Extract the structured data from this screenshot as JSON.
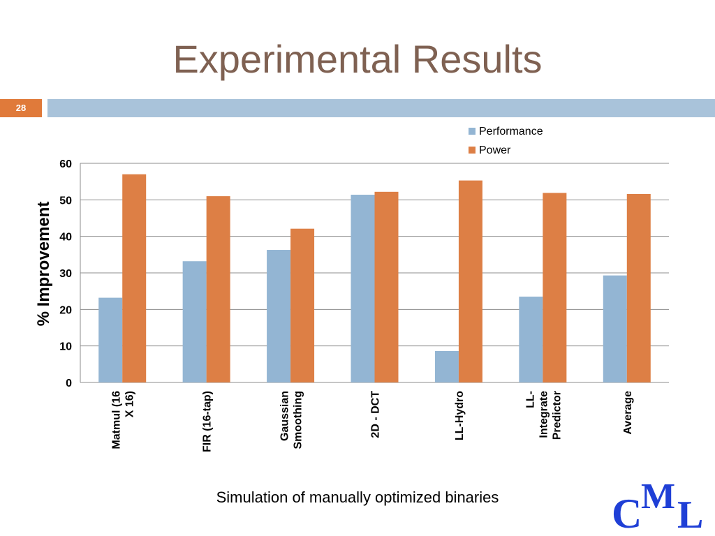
{
  "slide": {
    "title": "Experimental Results",
    "slide_number": "28",
    "caption": "Simulation of manually optimized binaries",
    "logo_text": "CML",
    "colors": {
      "title": "#7f6152",
      "accent_orange": "#e07a3a",
      "band_blue": "#a9c3da"
    }
  },
  "chart_data": {
    "type": "bar",
    "title": "",
    "xlabel": "",
    "ylabel": "% Improvement",
    "ylim": [
      0,
      60
    ],
    "yticks": [
      0,
      10,
      20,
      30,
      40,
      50,
      60
    ],
    "grid": true,
    "legend_position": "top-right",
    "categories": [
      [
        "Matmul (16",
        "X 16)"
      ],
      [
        "FIR (16-tap)"
      ],
      [
        "Gaussian",
        "Smoothing"
      ],
      [
        "2D - DCT"
      ],
      [
        "LL-Hydro"
      ],
      [
        "LL-",
        "Integrate",
        "Predictor"
      ],
      [
        "Average"
      ]
    ],
    "series": [
      {
        "name": "Performance",
        "color": "#93b5d3",
        "values": [
          23.2,
          33.2,
          36.3,
          51.4,
          8.6,
          23.5,
          29.3
        ]
      },
      {
        "name": "Power",
        "color": "#dd7f45",
        "values": [
          57.0,
          51.0,
          42.1,
          52.2,
          55.3,
          51.9,
          51.6
        ]
      }
    ]
  }
}
